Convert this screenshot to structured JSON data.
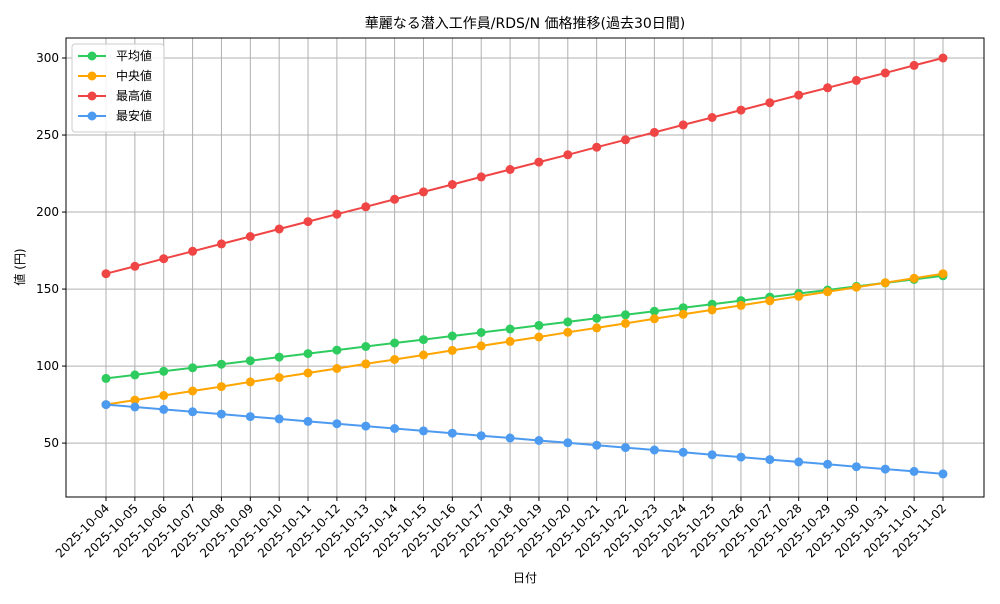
{
  "chart_data": {
    "type": "line",
    "title": "華麗なる潜入工作員/RDS/N 価格推移(過去30日間)",
    "xlabel": "日付",
    "ylabel": "値 (円)",
    "x": [
      "2025-10-04",
      "2025-10-05",
      "2025-10-06",
      "2025-10-07",
      "2025-10-08",
      "2025-10-09",
      "2025-10-10",
      "2025-10-11",
      "2025-10-12",
      "2025-10-13",
      "2025-10-14",
      "2025-10-15",
      "2025-10-16",
      "2025-10-17",
      "2025-10-18",
      "2025-10-19",
      "2025-10-20",
      "2025-10-21",
      "2025-10-22",
      "2025-10-23",
      "2025-10-24",
      "2025-10-25",
      "2025-10-26",
      "2025-10-27",
      "2025-10-28",
      "2025-10-29",
      "2025-10-30",
      "2025-10-31",
      "2025-11-01",
      "2025-11-02"
    ],
    "ylim": [
      15,
      313
    ],
    "yticks": [
      50,
      100,
      150,
      200,
      250,
      300
    ],
    "grid": true,
    "legend_position": "top-left",
    "series": [
      {
        "name": "平均値",
        "color": "#2ecc5f",
        "values": [
          92,
          94.3,
          96.6,
          98.9,
          101.2,
          103.5,
          105.8,
          108.1,
          110.4,
          112.7,
          115,
          117.2,
          119.5,
          121.8,
          124.1,
          126.4,
          128.7,
          131,
          133.3,
          135.6,
          137.9,
          140.2,
          142.5,
          144.8,
          147.1,
          149.4,
          151.7,
          154,
          156.3,
          158.6
        ]
      },
      {
        "name": "中央値",
        "color": "#ffa500",
        "values": [
          75,
          77.9,
          80.9,
          83.8,
          86.7,
          89.7,
          92.6,
          95.5,
          98.4,
          101.4,
          104.3,
          107.2,
          110.2,
          113.1,
          116,
          118.9,
          121.9,
          124.8,
          127.7,
          130.7,
          133.6,
          136.5,
          139.4,
          142.4,
          145.3,
          148.2,
          151.2,
          154.1,
          157,
          160
        ]
      },
      {
        "name": "最高値",
        "color": "#f04545",
        "values": [
          160,
          164.8,
          169.7,
          174.5,
          179.3,
          184.1,
          189,
          193.8,
          198.6,
          203.4,
          208.3,
          213.1,
          217.9,
          222.8,
          227.6,
          232.4,
          237.2,
          242.1,
          246.9,
          251.7,
          256.6,
          261.4,
          266.2,
          271,
          275.9,
          280.7,
          285.5,
          290.3,
          295.2,
          300
        ]
      },
      {
        "name": "最安値",
        "color": "#4d9bf0",
        "values": [
          75,
          73.4,
          71.9,
          70.3,
          68.8,
          67.2,
          65.7,
          64.1,
          62.6,
          61,
          59.5,
          57.9,
          56.4,
          54.8,
          53.3,
          51.7,
          50.2,
          48.6,
          47.1,
          45.5,
          44,
          42.4,
          40.9,
          39.3,
          37.8,
          36.2,
          34.7,
          33.1,
          31.6,
          30
        ]
      }
    ]
  }
}
